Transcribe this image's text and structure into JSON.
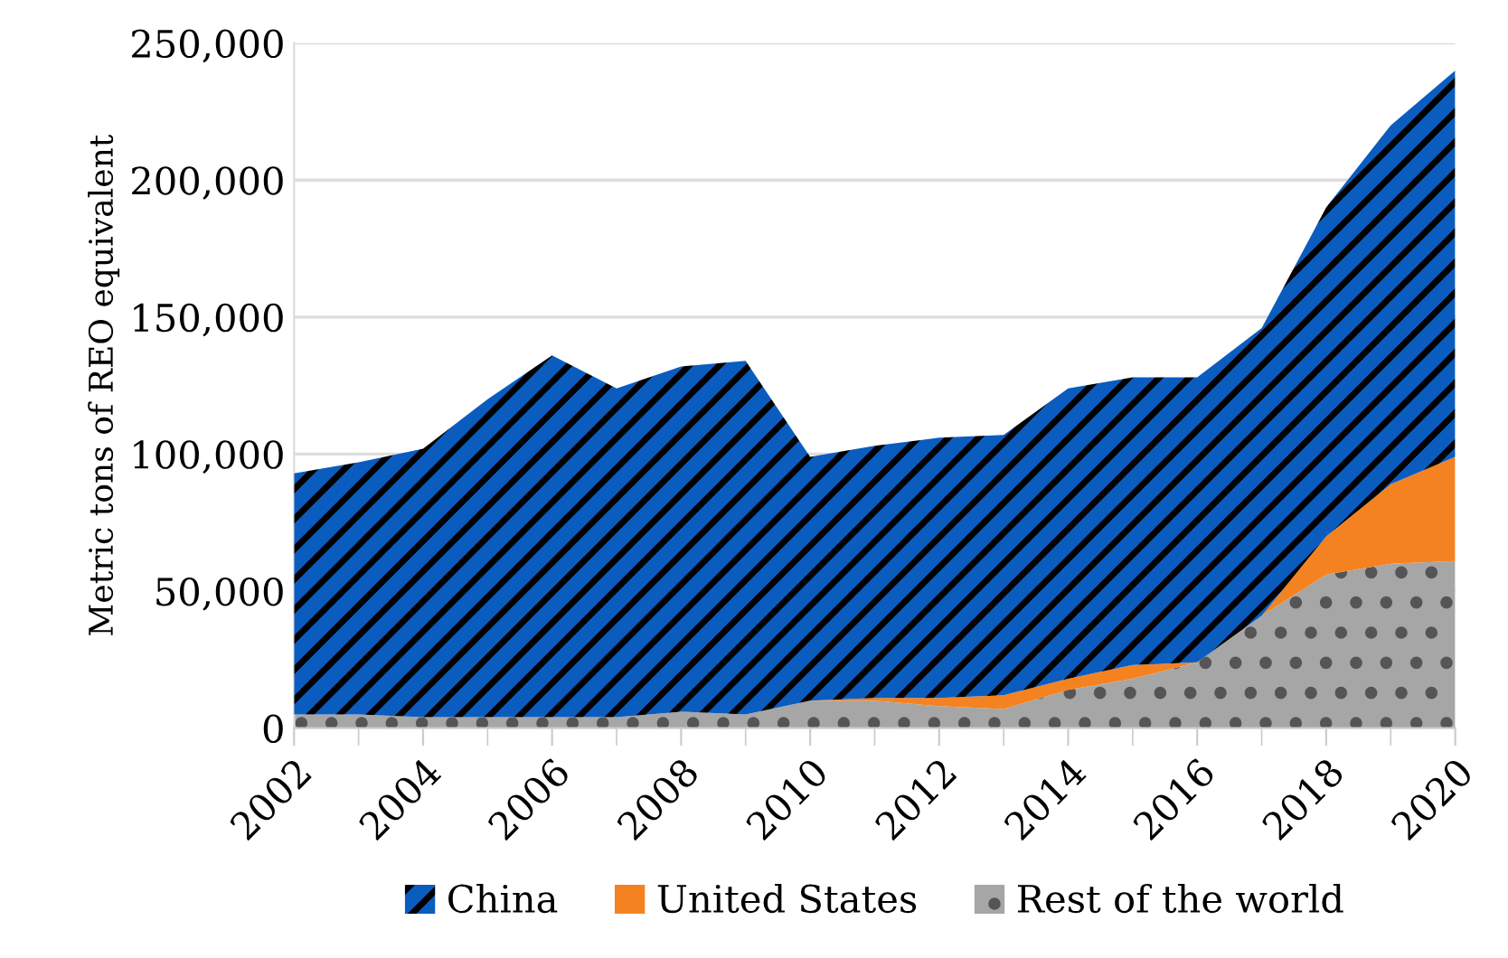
{
  "chart_data": {
    "type": "area",
    "stacked": true,
    "ylabel": "Metric tons of REO equivalent",
    "x": [
      2002,
      2003,
      2004,
      2005,
      2006,
      2007,
      2008,
      2009,
      2010,
      2011,
      2012,
      2013,
      2014,
      2015,
      2016,
      2017,
      2018,
      2019,
      2020
    ],
    "series": [
      {
        "name": "Rest of the world",
        "color": "#a6a6a6",
        "values": [
          5000,
          5000,
          4000,
          4000,
          4000,
          4000,
          6000,
          5000,
          10000,
          10000,
          8000,
          7000,
          14000,
          18000,
          24000,
          41000,
          56000,
          60000,
          61000
        ]
      },
      {
        "name": "United States",
        "color": "#f58220",
        "values": [
          0,
          0,
          0,
          0,
          0,
          0,
          0,
          0,
          0,
          1000,
          3000,
          5000,
          4000,
          5000,
          0,
          0,
          14000,
          29000,
          38000
        ]
      },
      {
        "name": "China",
        "color": "#0b5cbf",
        "values": [
          88000,
          92000,
          98000,
          116000,
          132000,
          120000,
          126000,
          129000,
          89000,
          92000,
          95000,
          95000,
          106000,
          105000,
          104000,
          105000,
          120000,
          131000,
          141000
        ]
      }
    ],
    "xlim": [
      2002,
      2020
    ],
    "xticks": [
      2002,
      2004,
      2006,
      2008,
      2010,
      2012,
      2014,
      2016,
      2018,
      2020
    ],
    "ylim": [
      0,
      250000
    ],
    "yticks": [
      {
        "value": 0,
        "label": "0"
      },
      {
        "value": 50000,
        "label": "50,000"
      },
      {
        "value": 100000,
        "label": "100,000"
      },
      {
        "value": 150000,
        "label": "150,000"
      },
      {
        "value": 200000,
        "label": "200,000"
      },
      {
        "value": 250000,
        "label": "250,000"
      }
    ],
    "grid": "y",
    "legend": "bottom"
  }
}
